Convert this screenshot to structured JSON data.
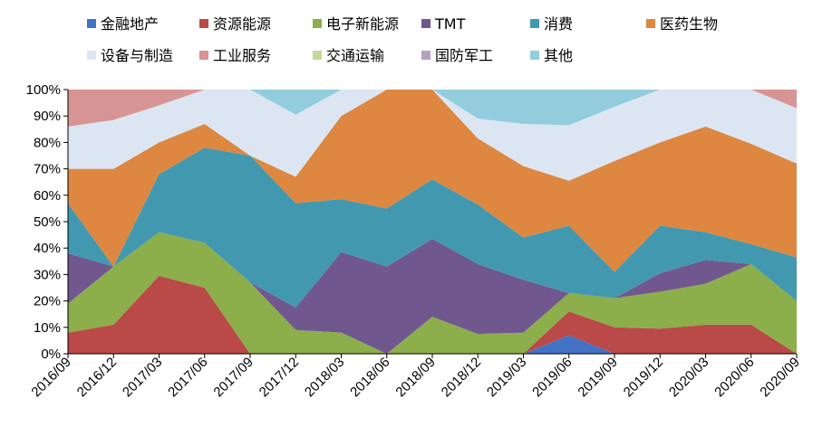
{
  "chart_data": {
    "type": "area",
    "stacked": true,
    "categories": [
      "2016/09",
      "2016/12",
      "2017/03",
      "2017/06",
      "2017/09",
      "2017/12",
      "2018/03",
      "2018/06",
      "2018/09",
      "2018/12",
      "2019/03",
      "2019/06",
      "2019/09",
      "2019/12",
      "2020/03",
      "2020/06",
      "2020/09"
    ],
    "y_ticks": [
      "0%",
      "10%",
      "20%",
      "30%",
      "40%",
      "50%",
      "60%",
      "70%",
      "80%",
      "90%",
      "100%"
    ],
    "ylim": [
      0,
      100
    ],
    "legend_position": "top",
    "series": [
      {
        "name": "金融地产",
        "color": "#4472C4",
        "values": [
          0,
          0,
          0,
          0,
          0,
          0,
          0,
          0,
          0,
          0,
          0,
          7,
          0,
          0,
          0,
          0,
          0
        ]
      },
      {
        "name": "资源能源",
        "color": "#B94A48",
        "values": [
          8,
          11,
          29.5,
          25,
          0,
          0,
          0,
          0,
          0,
          0,
          0,
          9,
          10,
          9.5,
          11,
          11,
          0
        ]
      },
      {
        "name": "电子新能源",
        "color": "#8CAE4B",
        "values": [
          11,
          22,
          16.5,
          17,
          27,
          9,
          8,
          0,
          14,
          7.5,
          8,
          7,
          11,
          14,
          15.5,
          23,
          20
        ]
      },
      {
        "name": "TMT",
        "color": "#70588F",
        "values": [
          19,
          0,
          0,
          0,
          0,
          8.5,
          30.5,
          33,
          29.5,
          26.5,
          20,
          0,
          0,
          7,
          9,
          0,
          0
        ]
      },
      {
        "name": "消费",
        "color": "#4299AF",
        "values": [
          19,
          0,
          22,
          36,
          48,
          39.5,
          20,
          22,
          22.5,
          22.5,
          16,
          25.5,
          10,
          18,
          10.5,
          7.5,
          16.5
        ]
      },
      {
        "name": "医药生物",
        "color": "#DE8740",
        "values": [
          13,
          37,
          12,
          9,
          0,
          10,
          31.5,
          45,
          34,
          25,
          27,
          17,
          42,
          31.5,
          40,
          38,
          35.5
        ]
      },
      {
        "name": "设备与制造",
        "color": "#DCE6F2",
        "values": [
          16,
          18.5,
          14,
          13,
          25,
          23.5,
          10,
          0,
          0,
          7.5,
          16,
          21,
          20.5,
          20,
          14,
          20.5,
          21
        ]
      },
      {
        "name": "工业服务",
        "color": "#D69594",
        "values": [
          14,
          11.5,
          6,
          0,
          0,
          0,
          0,
          0,
          0,
          0,
          0,
          0,
          0,
          0,
          0,
          0,
          7
        ]
      },
      {
        "name": "交通运输",
        "color": "#C4D89A",
        "values": [
          0,
          0,
          0,
          0,
          0,
          0,
          0,
          0,
          0,
          0,
          0,
          0,
          0,
          0,
          0,
          0,
          0
        ]
      },
      {
        "name": "国防军工",
        "color": "#B3A2C6",
        "values": [
          0,
          0,
          0,
          0,
          0,
          0,
          0,
          0,
          0,
          0,
          0,
          0,
          0,
          0,
          0,
          0,
          0
        ]
      },
      {
        "name": "其他",
        "color": "#93CDDD",
        "values": [
          0,
          0,
          0,
          0,
          0,
          9.5,
          0,
          0,
          0,
          11,
          13,
          13.5,
          6.5,
          0,
          0,
          0,
          0
        ]
      }
    ]
  }
}
